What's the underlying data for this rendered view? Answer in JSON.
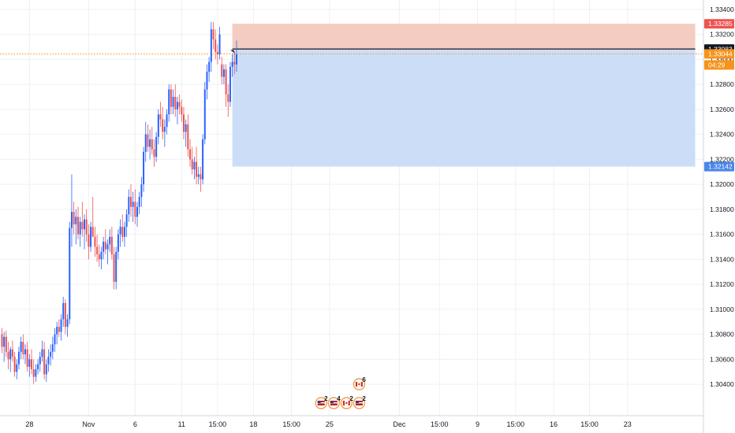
{
  "chart_data": {
    "type": "candlestick",
    "symbol_note": "",
    "colors": {
      "up": "#2962ff",
      "down": "#ef5350",
      "background": "#ffffff",
      "grid": "#eef0f3",
      "text": "#131722"
    },
    "y_axis": {
      "min": 1.303,
      "max": 1.3345,
      "ticks": [
        "1.33400",
        "1.33200",
        "1.33000",
        "1.32800",
        "1.32600",
        "1.32400",
        "1.32200",
        "1.32000",
        "1.31800",
        "1.31600",
        "1.31400",
        "1.31200",
        "1.31000",
        "1.30800",
        "1.30600",
        "1.30400"
      ]
    },
    "x_axis": {
      "labels": [
        {
          "text": "28",
          "bar": 13
        },
        {
          "text": "Nov",
          "bar": 41
        },
        {
          "text": "6",
          "bar": 63
        },
        {
          "text": "11",
          "bar": 85
        },
        {
          "text": "15:00",
          "bar": 102
        },
        {
          "text": "18",
          "bar": 119
        },
        {
          "text": "15:00",
          "bar": 137
        },
        {
          "text": "25",
          "bar": 155
        },
        {
          "text": "Dec",
          "bar": 188
        },
        {
          "text": "15:00",
          "bar": 207
        },
        {
          "text": "9",
          "bar": 225
        },
        {
          "text": "15:00",
          "bar": 243
        },
        {
          "text": "16",
          "bar": 261
        },
        {
          "text": "15:00",
          "bar": 278
        },
        {
          "text": "23",
          "bar": 296
        }
      ]
    },
    "candles": [
      [
        1.308,
        1.3085,
        1.3065,
        1.307
      ],
      [
        1.307,
        1.3082,
        1.3058,
        1.3078
      ],
      [
        1.3078,
        1.3083,
        1.3062,
        1.3066
      ],
      [
        1.3066,
        1.3074,
        1.3052,
        1.306
      ],
      [
        1.306,
        1.307,
        1.305,
        1.3068
      ],
      [
        1.3068,
        1.3075,
        1.3058,
        1.3062
      ],
      [
        1.3062,
        1.3066,
        1.3046,
        1.305
      ],
      [
        1.305,
        1.306,
        1.3044,
        1.3056
      ],
      [
        1.3056,
        1.307,
        1.3052,
        1.3066
      ],
      [
        1.3066,
        1.3078,
        1.306,
        1.3074
      ],
      [
        1.3074,
        1.308,
        1.306,
        1.3064
      ],
      [
        1.3064,
        1.3072,
        1.3056,
        1.3068
      ],
      [
        1.3068,
        1.3074,
        1.305,
        1.3054
      ],
      [
        1.3054,
        1.3064,
        1.3046,
        1.306
      ],
      [
        1.306,
        1.3068,
        1.3048,
        1.3052
      ],
      [
        1.3052,
        1.306,
        1.304,
        1.3046
      ],
      [
        1.3046,
        1.3056,
        1.3042,
        1.3052
      ],
      [
        1.3052,
        1.306,
        1.3048,
        1.3056
      ],
      [
        1.3056,
        1.3066,
        1.305,
        1.3062
      ],
      [
        1.3062,
        1.3075,
        1.3058,
        1.3068
      ],
      [
        1.3068,
        1.3074,
        1.3044,
        1.3048
      ],
      [
        1.3048,
        1.306,
        1.3042,
        1.3056
      ],
      [
        1.3056,
        1.3068,
        1.305,
        1.3062
      ],
      [
        1.3062,
        1.3072,
        1.3055,
        1.3066
      ],
      [
        1.3066,
        1.3078,
        1.306,
        1.3072
      ],
      [
        1.3072,
        1.3085,
        1.3066,
        1.308
      ],
      [
        1.308,
        1.309,
        1.3072,
        1.3086
      ],
      [
        1.3086,
        1.3092,
        1.3078,
        1.3082
      ],
      [
        1.3082,
        1.3096,
        1.3075,
        1.3092
      ],
      [
        1.3092,
        1.311,
        1.3086,
        1.3105
      ],
      [
        1.3105,
        1.3108,
        1.308,
        1.3086
      ],
      [
        1.3086,
        1.3096,
        1.3078,
        1.3092
      ],
      [
        1.3092,
        1.317,
        1.3088,
        1.3165
      ],
      [
        1.3165,
        1.3208,
        1.315,
        1.3178
      ],
      [
        1.3178,
        1.3186,
        1.316,
        1.3168
      ],
      [
        1.3168,
        1.318,
        1.3152,
        1.3174
      ],
      [
        1.3174,
        1.3182,
        1.3156,
        1.316
      ],
      [
        1.316,
        1.3174,
        1.315,
        1.317
      ],
      [
        1.317,
        1.3186,
        1.3158,
        1.3164
      ],
      [
        1.3164,
        1.3176,
        1.3148,
        1.3172
      ],
      [
        1.3172,
        1.318,
        1.3154,
        1.316
      ],
      [
        1.316,
        1.3168,
        1.314,
        1.315
      ],
      [
        1.315,
        1.317,
        1.3146,
        1.3166
      ],
      [
        1.3166,
        1.319,
        1.316,
        1.3158
      ],
      [
        1.3158,
        1.3166,
        1.3142,
        1.315
      ],
      [
        1.315,
        1.316,
        1.3138,
        1.3144
      ],
      [
        1.3144,
        1.3152,
        1.3134,
        1.314
      ],
      [
        1.314,
        1.315,
        1.3132,
        1.3146
      ],
      [
        1.3146,
        1.3158,
        1.314,
        1.3154
      ],
      [
        1.3154,
        1.3164,
        1.3144,
        1.3148
      ],
      [
        1.3148,
        1.3156,
        1.3136,
        1.3152
      ],
      [
        1.3152,
        1.3164,
        1.3146,
        1.3158
      ],
      [
        1.3158,
        1.3166,
        1.314,
        1.3144
      ],
      [
        1.3144,
        1.315,
        1.3116,
        1.3122
      ],
      [
        1.3122,
        1.315,
        1.3116,
        1.3146
      ],
      [
        1.3146,
        1.3164,
        1.314,
        1.316
      ],
      [
        1.316,
        1.3172,
        1.315,
        1.3166
      ],
      [
        1.3166,
        1.3176,
        1.3154,
        1.3158
      ],
      [
        1.3158,
        1.317,
        1.315,
        1.3166
      ],
      [
        1.3166,
        1.318,
        1.3158,
        1.3176
      ],
      [
        1.3176,
        1.3196,
        1.317,
        1.319
      ],
      [
        1.319,
        1.32,
        1.3174,
        1.3182
      ],
      [
        1.3182,
        1.3194,
        1.317,
        1.3186
      ],
      [
        1.3186,
        1.3196,
        1.3168,
        1.3174
      ],
      [
        1.3174,
        1.3186,
        1.3166,
        1.3182
      ],
      [
        1.3182,
        1.3194,
        1.3176,
        1.319
      ],
      [
        1.319,
        1.3206,
        1.3182,
        1.32
      ],
      [
        1.32,
        1.323,
        1.3194,
        1.3226
      ],
      [
        1.3226,
        1.325,
        1.3218,
        1.324
      ],
      [
        1.324,
        1.3248,
        1.3226,
        1.323
      ],
      [
        1.323,
        1.3244,
        1.322,
        1.3236
      ],
      [
        1.3236,
        1.3246,
        1.3224,
        1.3228
      ],
      [
        1.3228,
        1.3236,
        1.3214,
        1.3222
      ],
      [
        1.3222,
        1.3242,
        1.3218,
        1.3238
      ],
      [
        1.3238,
        1.326,
        1.3232,
        1.3256
      ],
      [
        1.3256,
        1.3266,
        1.3246,
        1.3252
      ],
      [
        1.3252,
        1.3262,
        1.3236,
        1.3242
      ],
      [
        1.3242,
        1.3252,
        1.323,
        1.3246
      ],
      [
        1.3246,
        1.326,
        1.324,
        1.3256
      ],
      [
        1.3256,
        1.328,
        1.325,
        1.3276
      ],
      [
        1.3276,
        1.328,
        1.3256,
        1.3262
      ],
      [
        1.3262,
        1.3276,
        1.3256,
        1.327
      ],
      [
        1.327,
        1.328,
        1.3254,
        1.326
      ],
      [
        1.326,
        1.327,
        1.3248,
        1.3266
      ],
      [
        1.3266,
        1.3272,
        1.3256,
        1.3262
      ],
      [
        1.3262,
        1.3268,
        1.325,
        1.3256
      ],
      [
        1.3256,
        1.3262,
        1.3236,
        1.3242
      ],
      [
        1.3242,
        1.3252,
        1.323,
        1.3248
      ],
      [
        1.3248,
        1.3256,
        1.3222,
        1.3228
      ],
      [
        1.3228,
        1.3236,
        1.3214,
        1.322
      ],
      [
        1.322,
        1.323,
        1.3208,
        1.3212
      ],
      [
        1.3212,
        1.3222,
        1.3204,
        1.3218
      ],
      [
        1.3218,
        1.323,
        1.32,
        1.3206
      ],
      [
        1.3206,
        1.3214,
        1.32,
        1.3208
      ],
      [
        1.3208,
        1.3214,
        1.3194,
        1.3204
      ],
      [
        1.3204,
        1.324,
        1.32,
        1.3236
      ],
      [
        1.3236,
        1.3282,
        1.3232,
        1.3276
      ],
      [
        1.3276,
        1.3296,
        1.3268,
        1.329
      ],
      [
        1.329,
        1.3302,
        1.3282,
        1.3298
      ],
      [
        1.3298,
        1.333,
        1.329,
        1.3324
      ],
      [
        1.3324,
        1.333,
        1.3308,
        1.3316
      ],
      [
        1.3316,
        1.3324,
        1.33,
        1.3306
      ],
      [
        1.3306,
        1.3312,
        1.3296,
        1.3304
      ],
      [
        1.3304,
        1.3326,
        1.33,
        1.332
      ],
      [
        1.3296,
        1.3302,
        1.328,
        1.3286
      ],
      [
        1.3286,
        1.3296,
        1.328,
        1.3292
      ],
      [
        1.3292,
        1.3296,
        1.3262,
        1.3272
      ],
      [
        1.3272,
        1.328,
        1.3254,
        1.3266
      ],
      [
        1.3266,
        1.3298,
        1.3262,
        1.3294
      ],
      [
        1.3294,
        1.3304,
        1.3286,
        1.3298
      ],
      [
        1.3298,
        1.3306,
        1.3288,
        1.3296
      ],
      [
        1.3296,
        1.3315,
        1.329,
        1.3304
      ]
    ],
    "position": {
      "entry": 1.33083,
      "target_top": 1.33285,
      "stop_bottom": 1.32142,
      "start_bar": 109,
      "end_bar": 328
    },
    "current_price": 1.33044,
    "price_tags": [
      {
        "label": "1.33285",
        "value": 1.33285,
        "color": "#ef5350"
      },
      {
        "label": "1.33083",
        "value": 1.33083,
        "color": "#131722"
      },
      {
        "label": "1.33044",
        "value": 1.33044,
        "color": "#f7931a"
      },
      {
        "label": "04:29",
        "value": 1.3298,
        "color": "#f7931a"
      },
      {
        "label": "1.32142",
        "value": 1.32142,
        "color": "#4a86e8"
      }
    ],
    "events": [
      {
        "flag": "us",
        "count": "2",
        "bar": 151
      },
      {
        "flag": "us",
        "count": "4",
        "bar": 157
      },
      {
        "flag": "ca",
        "count": "2",
        "bar": 163
      },
      {
        "flag": "ca",
        "count": "6",
        "bar": 169
      },
      {
        "flag": "us",
        "count": "2",
        "bar": 169
      }
    ]
  }
}
